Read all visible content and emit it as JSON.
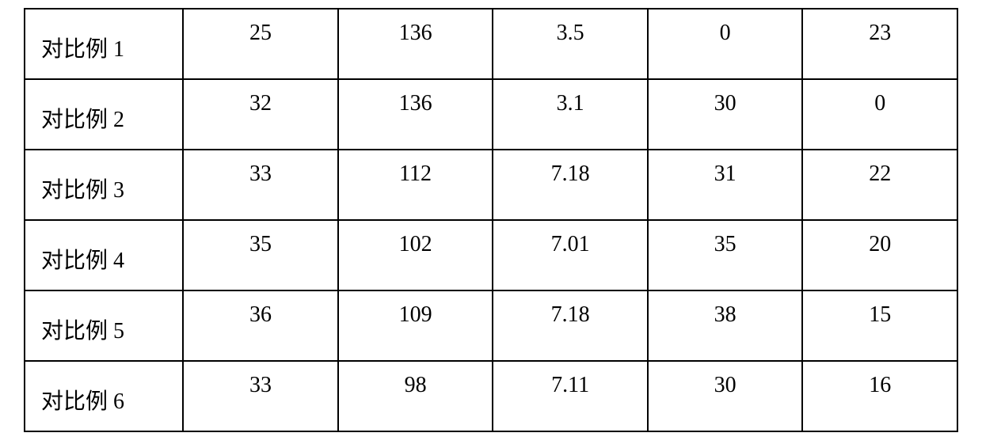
{
  "table": {
    "type": "table",
    "border_color": "#000000",
    "background_color": "#ffffff",
    "text_color": "#000000",
    "font_size_pt": 21,
    "column_alignment": [
      "left",
      "center",
      "center",
      "center",
      "center",
      "center"
    ],
    "rows": [
      {
        "label": "对比例 1",
        "c1": "25",
        "c2": "136",
        "c3": "3.5",
        "c4": "0",
        "c5": "23"
      },
      {
        "label": "对比例 2",
        "c1": "32",
        "c2": "136",
        "c3": "3.1",
        "c4": "30",
        "c5": "0"
      },
      {
        "label": "对比例 3",
        "c1": "33",
        "c2": "112",
        "c3": "7.18",
        "c4": "31",
        "c5": "22"
      },
      {
        "label": "对比例 4",
        "c1": "35",
        "c2": "102",
        "c3": "7.01",
        "c4": "35",
        "c5": "20"
      },
      {
        "label": "对比例 5",
        "c1": "36",
        "c2": "109",
        "c3": "7.18",
        "c4": "38",
        "c5": "15"
      },
      {
        "label": "对比例 6",
        "c1": "33",
        "c2": "98",
        "c3": "7.11",
        "c4": "30",
        "c5": "16"
      }
    ]
  }
}
